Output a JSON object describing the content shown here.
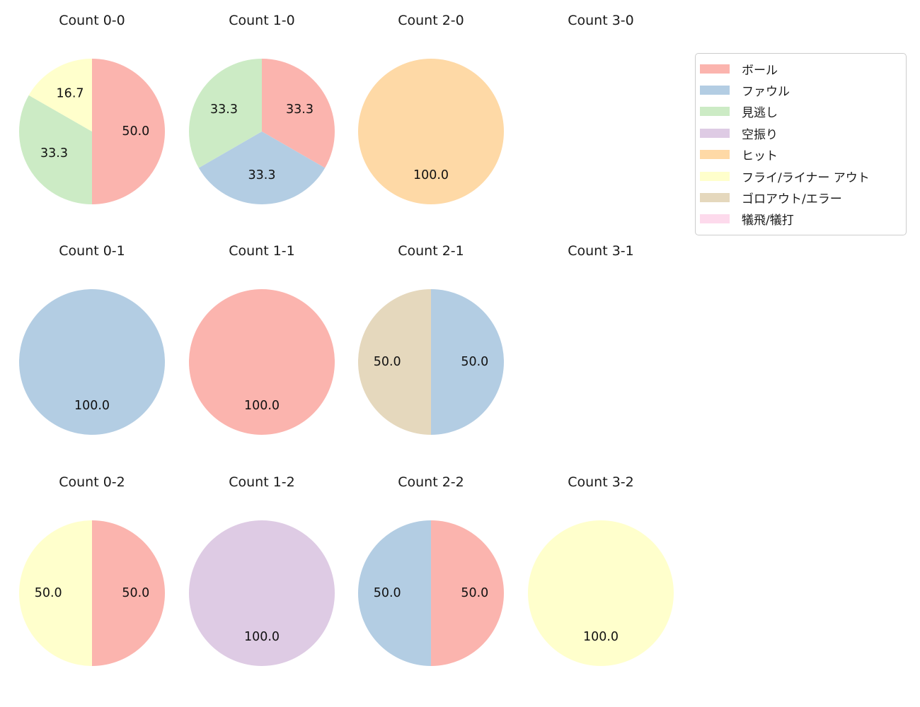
{
  "figure": {
    "background": "#ffffff",
    "grid": "4 columns x 3 rows of pie subplots, legend at top-right"
  },
  "legend": {
    "position": "top-right",
    "items": [
      {
        "label": "ボール",
        "color": "#fbb4ae"
      },
      {
        "label": "ファウル",
        "color": "#b3cde3"
      },
      {
        "label": "見逃し",
        "color": "#ccebc5"
      },
      {
        "label": "空振り",
        "color": "#decbe4"
      },
      {
        "label": "ヒット",
        "color": "#fed9a6"
      },
      {
        "label": "フライ/ライナー アウト",
        "color": "#ffffcc"
      },
      {
        "label": "ゴロアウト/エラー",
        "color": "#e5d8bd"
      },
      {
        "label": "犠飛/犠打",
        "color": "#fddaec"
      }
    ]
  },
  "chart_data": [
    {
      "type": "pie",
      "title": "Count 0-0",
      "start_angle": 90,
      "direction": "clockwise",
      "slices": [
        {
          "category": "ボール",
          "value": 50.0,
          "label": "50.0"
        },
        {
          "category": "見逃し",
          "value": 33.3,
          "label": "33.3"
        },
        {
          "category": "フライ/ライナー アウト",
          "value": 16.7,
          "label": "16.7"
        }
      ]
    },
    {
      "type": "pie",
      "title": "Count 1-0",
      "start_angle": 90,
      "direction": "clockwise",
      "slices": [
        {
          "category": "ボール",
          "value": 33.3,
          "label": "33.3"
        },
        {
          "category": "ファウル",
          "value": 33.3,
          "label": "33.3"
        },
        {
          "category": "見逃し",
          "value": 33.3,
          "label": "33.3"
        }
      ]
    },
    {
      "type": "pie",
      "title": "Count 2-0",
      "start_angle": 90,
      "direction": "clockwise",
      "slices": [
        {
          "category": "ヒット",
          "value": 100.0,
          "label": "100.0"
        }
      ]
    },
    {
      "type": "pie",
      "title": "Count 3-0",
      "start_angle": 90,
      "direction": "clockwise",
      "slices": []
    },
    {
      "type": "pie",
      "title": "Count 0-1",
      "start_angle": 90,
      "direction": "clockwise",
      "slices": [
        {
          "category": "ファウル",
          "value": 100.0,
          "label": "100.0"
        }
      ]
    },
    {
      "type": "pie",
      "title": "Count 1-1",
      "start_angle": 90,
      "direction": "clockwise",
      "slices": [
        {
          "category": "ボール",
          "value": 100.0,
          "label": "100.0"
        }
      ]
    },
    {
      "type": "pie",
      "title": "Count 2-1",
      "start_angle": 90,
      "direction": "clockwise",
      "slices": [
        {
          "category": "ファウル",
          "value": 50.0,
          "label": "50.0"
        },
        {
          "category": "ゴロアウト/エラー",
          "value": 50.0,
          "label": "50.0"
        }
      ]
    },
    {
      "type": "pie",
      "title": "Count 3-1",
      "start_angle": 90,
      "direction": "clockwise",
      "slices": []
    },
    {
      "type": "pie",
      "title": "Count 0-2",
      "start_angle": 90,
      "direction": "clockwise",
      "slices": [
        {
          "category": "ボール",
          "value": 50.0,
          "label": "50.0"
        },
        {
          "category": "フライ/ライナー アウト",
          "value": 50.0,
          "label": "50.0"
        }
      ]
    },
    {
      "type": "pie",
      "title": "Count 1-2",
      "start_angle": 90,
      "direction": "clockwise",
      "slices": [
        {
          "category": "空振り",
          "value": 100.0,
          "label": "100.0"
        }
      ]
    },
    {
      "type": "pie",
      "title": "Count 2-2",
      "start_angle": 90,
      "direction": "clockwise",
      "slices": [
        {
          "category": "ボール",
          "value": 50.0,
          "label": "50.0"
        },
        {
          "category": "ファウル",
          "value": 50.0,
          "label": "50.0"
        }
      ]
    },
    {
      "type": "pie",
      "title": "Count 3-2",
      "start_angle": 90,
      "direction": "clockwise",
      "slices": [
        {
          "category": "フライ/ライナー アウト",
          "value": 100.0,
          "label": "100.0"
        }
      ]
    }
  ]
}
